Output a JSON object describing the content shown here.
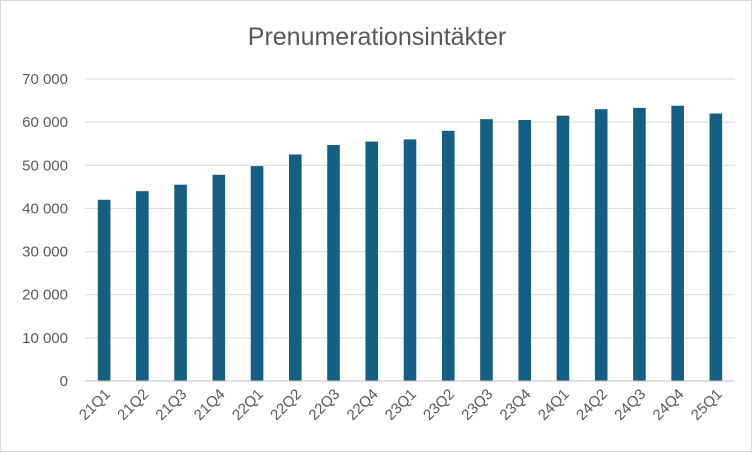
{
  "chart_data": {
    "type": "bar",
    "title": "Prenumerationsintäkter",
    "xlabel": "",
    "ylabel": "",
    "categories": [
      "21Q1",
      "21Q2",
      "21Q3",
      "21Q4",
      "22Q1",
      "22Q2",
      "22Q3",
      "22Q4",
      "23Q1",
      "23Q2",
      "23Q3",
      "23Q4",
      "24Q1",
      "24Q2",
      "24Q3",
      "24Q4",
      "25Q1"
    ],
    "values": [
      42000,
      44000,
      45500,
      47800,
      49800,
      52500,
      54700,
      55500,
      56000,
      58000,
      60700,
      60500,
      61500,
      63000,
      63300,
      63800,
      62000
    ],
    "ylim": [
      0,
      70000
    ],
    "yticks": [
      0,
      10000,
      20000,
      30000,
      40000,
      50000,
      60000,
      70000
    ],
    "ytick_labels": [
      "0",
      "10 000",
      "20 000",
      "30 000",
      "40 000",
      "50 000",
      "60 000",
      "70 000"
    ],
    "grid": true,
    "legend": "none",
    "bar_color": "#156082"
  }
}
